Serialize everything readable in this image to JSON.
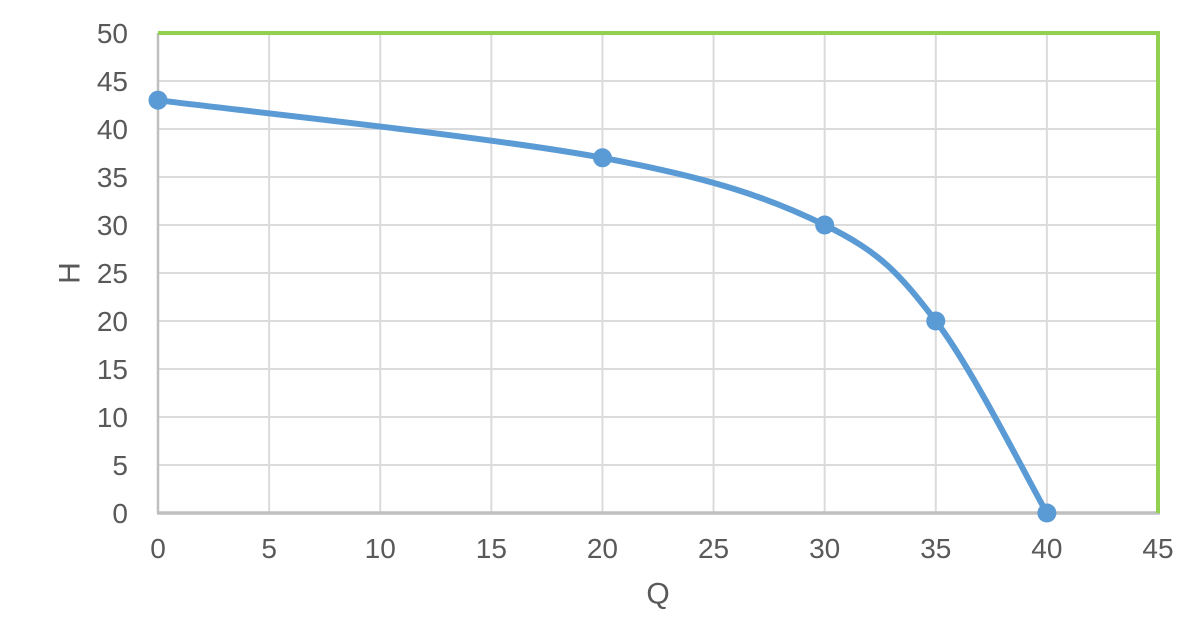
{
  "chart_data": {
    "type": "line",
    "title": "",
    "xlabel": "Q",
    "ylabel": "H",
    "series": [
      {
        "name": "H",
        "points": [
          [
            0,
            43
          ],
          [
            20,
            37
          ],
          [
            30,
            30
          ],
          [
            35,
            20
          ],
          [
            40,
            0
          ]
        ]
      }
    ],
    "xlim": [
      0,
      45
    ],
    "ylim": [
      0,
      50
    ],
    "x_ticks": [
      0,
      5,
      10,
      15,
      20,
      25,
      30,
      35,
      40,
      45
    ],
    "y_ticks": [
      0,
      5,
      10,
      15,
      20,
      25,
      30,
      35,
      40,
      45,
      50
    ],
    "grid": true,
    "smooth": true,
    "legend": "none",
    "marker": "circle",
    "plot_border_sides": [
      "top",
      "right"
    ],
    "colors": {
      "line": "#5B9BD5",
      "marker": "#5B9BD5",
      "plot_border": "#92D050",
      "gridline": "#DBDBDB",
      "axis_line": "#BFBFBF",
      "tick_text": "#595959"
    }
  }
}
